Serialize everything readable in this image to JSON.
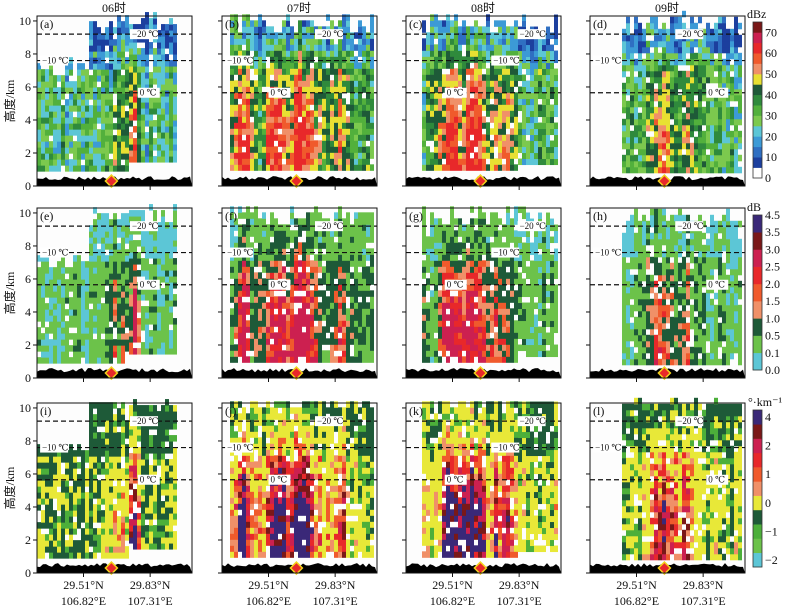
{
  "chart_data": {
    "type": "heatmap",
    "description_rows": [
      "reflectivity",
      "differential_reflectivity",
      "specific_differential_phase"
    ],
    "column_titles": [
      "06时",
      "07时",
      "08时",
      "09时"
    ],
    "panel_labels": [
      [
        "(a)",
        "(b)",
        "(c)",
        "(d)"
      ],
      [
        "(e)",
        "(f)",
        "(g)",
        "(h)"
      ],
      [
        "(i)",
        "(j)",
        "(k)",
        "(l)"
      ]
    ],
    "ylabel": "高度/km",
    "ylim": [
      0,
      10.3
    ],
    "yticks": [
      "0",
      "2",
      "4",
      "6",
      "8",
      "10"
    ],
    "ytick_values": [
      0,
      2,
      4,
      6,
      8,
      10
    ],
    "xticks": [
      {
        "lat": "29.51°N",
        "lon": "106.82°E"
      },
      {
        "lat": "29.83°N",
        "lon": "107.31°E"
      }
    ],
    "isotherms": [
      {
        "label": "−20 ℃",
        "height_km": 9.2
      },
      {
        "label": "−10 ℃",
        "height_km": 7.6
      },
      {
        "label": "0 ℃",
        "height_km": 5.65
      }
    ],
    "colorbars": [
      {
        "unit": "dBz",
        "ticks": [
          "0",
          "10",
          "20",
          "30",
          "40",
          "50",
          "60",
          "70"
        ],
        "colors": [
          "#ffffff",
          "#1c3f9e",
          "#2f6fc2",
          "#3c9ad6",
          "#5cc6d6",
          "#7cc94e",
          "#52b03c",
          "#2f8a3c",
          "#1e5a38",
          "#e8e032",
          "#f09068",
          "#f05a2c",
          "#e8282a",
          "#cc2050",
          "#7a1818",
          "#3a2878"
        ]
      },
      {
        "unit": "dB",
        "ticks": [
          "0.0",
          "0.1",
          "0.5",
          "1.0",
          "1.5",
          "2.0",
          "2.5",
          "3.0",
          "3.5",
          "4.5"
        ],
        "colors": [
          "#5cc6d6",
          "#6cc24a",
          "#1e5a38",
          "#f09068",
          "#f05a2c",
          "#e8282a",
          "#cc2050",
          "#7a1818",
          "#3a2878"
        ]
      },
      {
        "unit": "°·km⁻¹",
        "ticks": [
          "−2",
          "−1",
          "0",
          "1",
          "2",
          "4"
        ],
        "colors": [
          "#5cc6d6",
          "#6cc24a",
          "#4caf3a",
          "#1e5a38",
          "#e8e838",
          "#f09068",
          "#f05a2c",
          "#e8282a",
          "#cc2050",
          "#7a1818",
          "#3a2878"
        ]
      }
    ],
    "terrain_marker": "red-diamond"
  }
}
